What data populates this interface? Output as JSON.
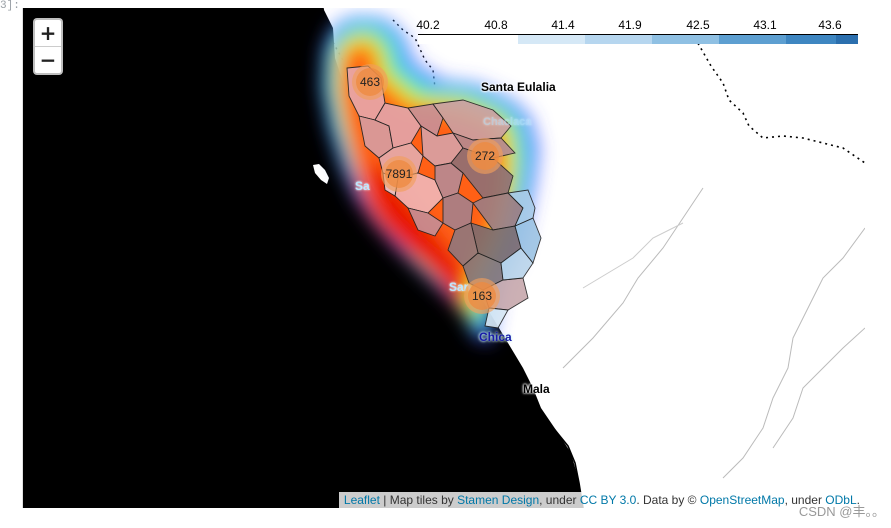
{
  "cell_prompt": "3]:",
  "zoom": {
    "in_label": "+",
    "out_label": "−"
  },
  "legend": {
    "ticks": [
      "40.2",
      "40.8",
      "41.4",
      "41.9",
      "42.5",
      "43.1",
      "43.6"
    ],
    "colors": [
      "#ffffff",
      "#d5e8f6",
      "#b6d6ef",
      "#8fc0e3",
      "#5d9fd1",
      "#3e86c1",
      "#2b6fae"
    ]
  },
  "places": {
    "santa_eulalia": "Santa Eulalia",
    "chica": "Chica",
    "mala": "Mala",
    "san_s": "Sa",
    "san_b": "San",
    "chi_faint": "Chaclacayo"
  },
  "clusters": [
    {
      "count": "463"
    },
    {
      "count": "272"
    },
    {
      "count": "7891"
    },
    {
      "count": "163"
    }
  ],
  "attribution": {
    "leaflet": "Leaflet",
    "sep1": " | Map tiles by ",
    "stamen": "Stamen Design",
    "sep2": ", under ",
    "ccby": "CC BY 3.0",
    "sep3": ". Data by © ",
    "osm": "OpenStreetMap",
    "sep4": ", under ",
    "odbl": "ODbL",
    "end": "."
  },
  "watermark": "CSDN @丰。。"
}
